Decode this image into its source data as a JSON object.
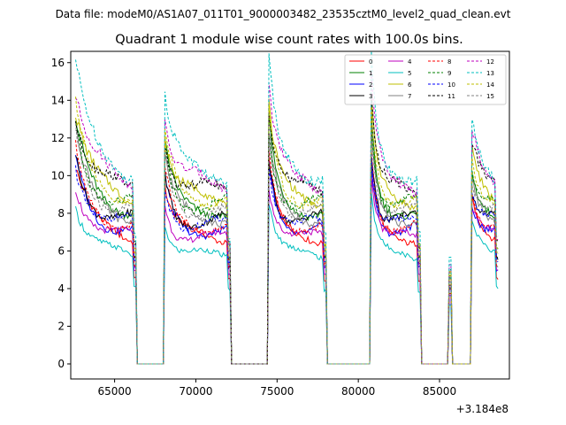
{
  "chart_data": {
    "type": "line",
    "suptitle": "Data file: modeM0/AS1A07_011T01_9000003482_23535cztM0_level2_quad_clean.evt",
    "title": "Quadrant 1 module wise count rates with 100.0s bins.",
    "xlabel": "",
    "ylabel": "",
    "x_offset_label": "+3.184e8",
    "xlim": [
      62300,
      89300
    ],
    "ylim": [
      -0.8,
      16.6
    ],
    "xticks": [
      65000,
      70000,
      75000,
      80000,
      85000
    ],
    "yticks": [
      0,
      2,
      4,
      6,
      8,
      10,
      12,
      14,
      16
    ],
    "legend_location": "top-right",
    "x_range_start": 62600,
    "x_range_end": 88600,
    "bin_size": 100,
    "orbit_segments": [
      {
        "start": 62600,
        "end": 66300,
        "peak": 1.5,
        "decay": 900
      },
      {
        "start": 68100,
        "end": 72100,
        "peak": 1.35,
        "decay": 500
      },
      {
        "start": 74500,
        "end": 78000,
        "peak": 1.5,
        "decay": 500
      },
      {
        "start": 80800,
        "end": 83800,
        "peak": 1.55,
        "decay": 350
      },
      {
        "start": 85600,
        "end": 85700,
        "peak": 0.55,
        "decay": 100
      },
      {
        "start": 87000,
        "end": 88600,
        "peak": 1.25,
        "decay": 500
      }
    ],
    "series": [
      {
        "name": "0",
        "color": "#ff0000",
        "dash": false,
        "base": 6.8
      },
      {
        "name": "1",
        "color": "#008000",
        "dash": false,
        "base": 8.3
      },
      {
        "name": "2",
        "color": "#0000ff",
        "dash": false,
        "base": 7.2
      },
      {
        "name": "3",
        "color": "#000000",
        "dash": false,
        "base": 7.6
      },
      {
        "name": "4",
        "color": "#bf00bf",
        "dash": false,
        "base": 6.6
      },
      {
        "name": "5",
        "color": "#00bfbf",
        "dash": false,
        "base": 5.7
      },
      {
        "name": "6",
        "color": "#bfbf00",
        "dash": false,
        "base": 8.8
      },
      {
        "name": "7",
        "color": "#808080",
        "dash": false,
        "base": 7.9
      },
      {
        "name": "8",
        "color": "#ff0000",
        "dash": true,
        "base": 7.4
      },
      {
        "name": "9",
        "color": "#008000",
        "dash": true,
        "base": 8.5
      },
      {
        "name": "10",
        "color": "#0000ff",
        "dash": true,
        "base": 7.3
      },
      {
        "name": "11",
        "color": "#000000",
        "dash": true,
        "base": 9.1
      },
      {
        "name": "12",
        "color": "#bf00bf",
        "dash": true,
        "base": 9.6
      },
      {
        "name": "13",
        "color": "#00bfbf",
        "dash": true,
        "base": 10.3
      },
      {
        "name": "14",
        "color": "#bfbf00",
        "dash": true,
        "base": 8.9
      },
      {
        "name": "15",
        "color": "#808080",
        "dash": true,
        "base": 8.2
      }
    ]
  }
}
